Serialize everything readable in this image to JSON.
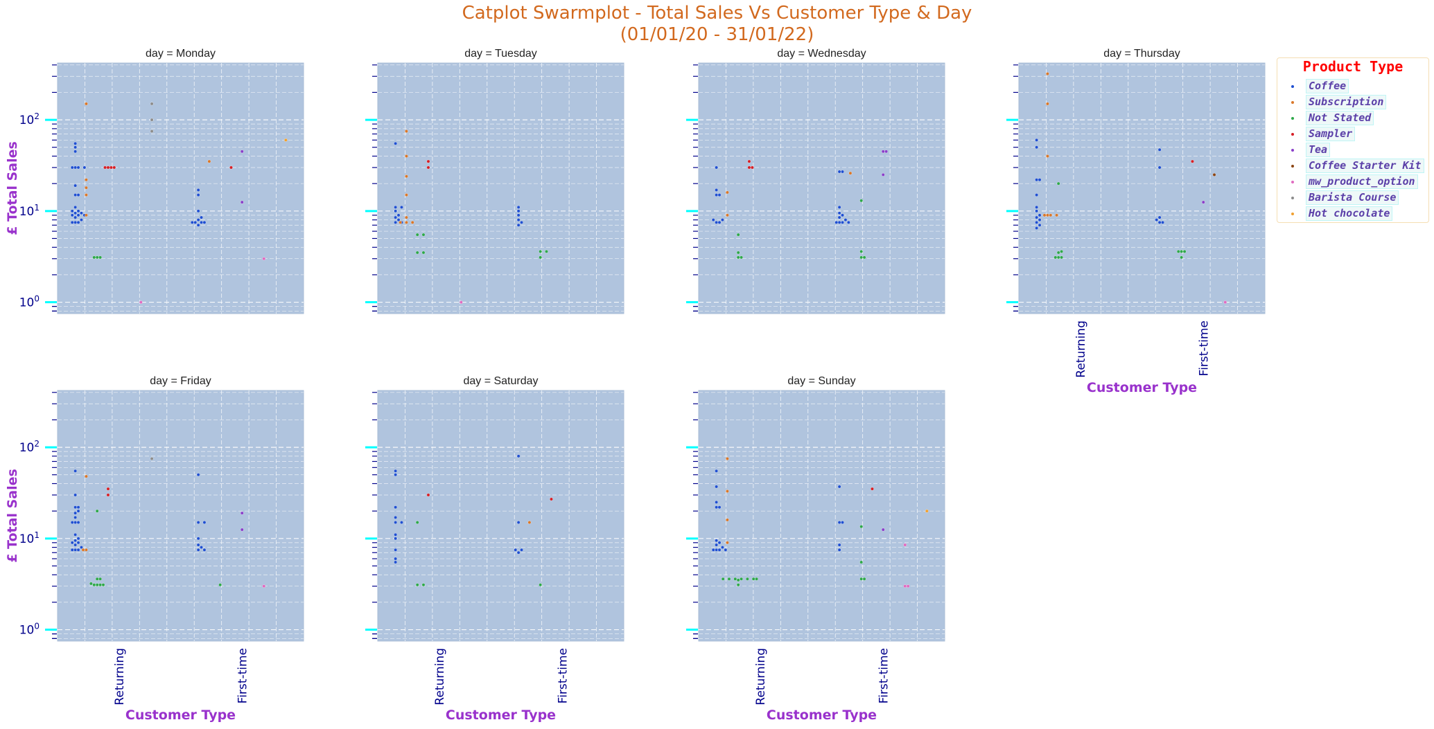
{
  "figure": {
    "title_line1": "Catplot Swarmplot - Total Sales Vs Customer Type & Day",
    "title_line2": "(01/01/20 - 31/01/22)"
  },
  "legend": {
    "title": "Product Type",
    "items": [
      {
        "label": "Coffee",
        "color": "#1f4fd1"
      },
      {
        "label": "Subscription",
        "color": "#d9772a"
      },
      {
        "label": "Not Stated",
        "color": "#2ea84a"
      },
      {
        "label": "Sampler",
        "color": "#d61f26"
      },
      {
        "label": "Tea",
        "color": "#8a3fc9"
      },
      {
        "label": "Coffee Starter Kit",
        "color": "#8b4513"
      },
      {
        "label": "mw_product_option",
        "color": "#e06bc0"
      },
      {
        "label": "Barista Course",
        "color": "#8c8c8c"
      },
      {
        "label": "Hot chocolate",
        "color": "#f0a030"
      }
    ]
  },
  "colors": {
    "axes_bg": "#b0c4de",
    "grid": "#ffffff",
    "tick_label": "#00008b",
    "axis_label": "#9932cc",
    "major_tick": "#00ffff",
    "minor_tick": "#00008b",
    "title_color": "#d2691e"
  },
  "chart_data": {
    "type": "scatter",
    "kind": "swarm",
    "x_label": "Customer Type",
    "y_label": "£ Total Sales",
    "y_scale": "log",
    "ylim": [
      0.75,
      420
    ],
    "y_tick_labels": [
      "10^0",
      "10^1",
      "10^2"
    ],
    "categories": [
      "Returning",
      "First-time"
    ],
    "hue_order": [
      "Coffee",
      "Subscription",
      "Not Stated",
      "Sampler",
      "Tea",
      "Coffee Starter Kit",
      "mw_product_option",
      "Barista Course",
      "Hot chocolate"
    ],
    "panels": [
      {
        "day": "Monday",
        "title": "day = Monday",
        "Returning": {
          "Coffee": [
            7.5,
            7.5,
            7.5,
            8,
            8.5,
            9,
            9,
            9,
            9.5,
            9.5,
            10,
            10,
            11,
            15,
            15,
            19,
            30,
            30,
            30,
            30,
            45,
            50,
            55
          ],
          "Subscription": [
            9,
            15,
            18,
            22,
            150
          ],
          "Not Stated": [
            3.1,
            3.1,
            3.1
          ],
          "Sampler": [
            30,
            30,
            30,
            30
          ],
          "mw_product_option": [
            1.0
          ],
          "Barista Course": [
            75,
            100,
            150
          ]
        },
        "First-time": {
          "Coffee": [
            7,
            7.5,
            7.5,
            7.5,
            7.5,
            8,
            8.5,
            10,
            15,
            17
          ],
          "Subscription": [
            35
          ],
          "Sampler": [
            30
          ],
          "Tea": [
            12.5,
            45
          ],
          "mw_product_option": [
            3.0
          ],
          "Hot chocolate": [
            60
          ]
        }
      },
      {
        "day": "Tuesday",
        "title": "day = Tuesday",
        "Returning": {
          "Coffee": [
            7.5,
            7.5,
            8,
            8.5,
            9,
            10,
            11,
            11,
            55
          ],
          "Subscription": [
            7.5,
            7.5,
            7.5,
            8.5,
            15,
            24,
            40,
            75
          ],
          "Not Stated": [
            3.5,
            3.5,
            5.5,
            5.5
          ],
          "Sampler": [
            30,
            35
          ],
          "mw_product_option": [
            1.0
          ]
        },
        "First-time": {
          "Coffee": [
            7,
            7.5,
            8,
            9,
            10,
            11
          ],
          "Not Stated": [
            3.1,
            3.6,
            3.6
          ]
        }
      },
      {
        "day": "Wednesday",
        "title": "day = Wednesday",
        "Returning": {
          "Coffee": [
            7.5,
            7.5,
            8,
            8,
            15,
            15,
            17,
            30
          ],
          "Subscription": [
            9,
            16
          ],
          "Not Stated": [
            3.1,
            3.1,
            3.5,
            5.5
          ],
          "Sampler": [
            30,
            30,
            35
          ]
        },
        "First-time": {
          "Coffee": [
            7.5,
            7.5,
            7.5,
            7.5,
            8,
            8.5,
            9,
            9.5,
            11,
            27,
            27
          ],
          "Subscription": [
            26
          ],
          "Not Stated": [
            3.1,
            3.1,
            3.6,
            13
          ],
          "Tea": [
            25,
            45,
            45
          ]
        }
      },
      {
        "day": "Thursday",
        "title": "day = Thursday",
        "Returning": {
          "Coffee": [
            6.5,
            7,
            7.5,
            8,
            8.5,
            9,
            10,
            11,
            15,
            22,
            22,
            50,
            60
          ],
          "Subscription": [
            9,
            9,
            9,
            9,
            40,
            150,
            320
          ],
          "Not Stated": [
            3.1,
            3.1,
            3.1,
            3.5,
            3.6,
            20
          ]
        },
        "First-time": {
          "Coffee": [
            7.5,
            7.5,
            8,
            8.5,
            30,
            47
          ],
          "Not Stated": [
            3.1,
            3.6,
            3.6,
            3.6
          ],
          "Sampler": [
            35
          ],
          "Tea": [
            12.5
          ],
          "Coffee Starter Kit": [
            25
          ],
          "mw_product_option": [
            1.0
          ]
        }
      },
      {
        "day": "Friday",
        "title": "day = Friday",
        "Returning": {
          "Coffee": [
            7.5,
            7.5,
            7.5,
            8,
            8.5,
            9,
            9,
            9.5,
            10,
            11,
            15,
            15,
            15,
            17,
            19,
            20,
            22,
            22,
            30,
            55
          ],
          "Subscription": [
            7.5,
            7.5,
            48
          ],
          "Not Stated": [
            3.1,
            3.1,
            3.1,
            3.1,
            3.2,
            3.6,
            3.6,
            20
          ],
          "Sampler": [
            30,
            35
          ],
          "Barista Course": [
            75
          ]
        },
        "First-time": {
          "Coffee": [
            7.5,
            7.5,
            8,
            8.5,
            10,
            15,
            15,
            50
          ],
          "Not Stated": [
            3.1
          ],
          "Tea": [
            12.5,
            19
          ],
          "mw_product_option": [
            3.0
          ]
        }
      },
      {
        "day": "Saturday",
        "title": "day = Saturday",
        "Returning": {
          "Coffee": [
            5.5,
            6,
            7.5,
            10,
            11,
            15,
            15,
            17,
            22,
            50,
            55
          ],
          "Not Stated": [
            3.1,
            3.1,
            15
          ],
          "Sampler": [
            30
          ]
        },
        "First-time": {
          "Coffee": [
            7,
            7.5,
            7.5,
            15,
            80
          ],
          "Subscription": [
            15
          ],
          "Not Stated": [
            3.1
          ],
          "Sampler": [
            27
          ]
        }
      },
      {
        "day": "Sunday",
        "title": "day = Sunday",
        "Returning": {
          "Coffee": [
            7.5,
            7.5,
            7.5,
            7.5,
            8,
            8.5,
            9,
            9.5,
            22,
            22,
            25,
            37,
            55
          ],
          "Subscription": [
            9,
            16,
            33,
            75
          ],
          "Not Stated": [
            3.1,
            3.5,
            3.6,
            3.6,
            3.6,
            3.6,
            3.6,
            3.6,
            3.6
          ]
        },
        "First-time": {
          "Coffee": [
            7.5,
            8.5,
            15,
            15,
            37
          ],
          "Not Stated": [
            3.6,
            3.6,
            5.5,
            13.5
          ],
          "Sampler": [
            35
          ],
          "Tea": [
            12.5
          ],
          "mw_product_option": [
            3.0,
            3.0,
            8.5
          ],
          "Hot chocolate": [
            20
          ]
        }
      }
    ]
  }
}
